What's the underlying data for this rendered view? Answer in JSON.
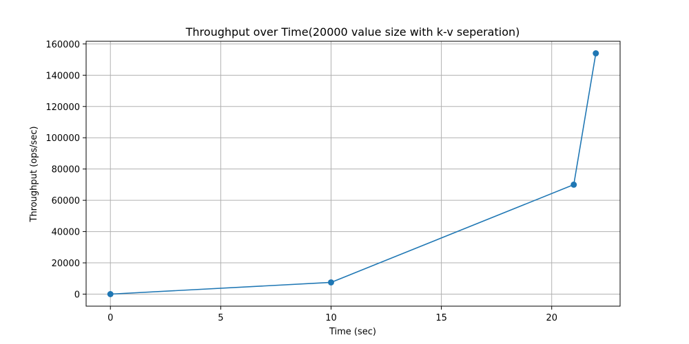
{
  "chart_data": {
    "type": "line",
    "title": "Throughput over Time(20000 value size with k-v seperation)",
    "xlabel": "Time (sec)",
    "ylabel": "Throughput (ops/sec)",
    "xlim": [
      -1.1,
      23.1
    ],
    "ylim": [
      -7700,
      161700
    ],
    "x_ticks": [
      0,
      5,
      10,
      15,
      20
    ],
    "y_ticks": [
      0,
      20000,
      40000,
      60000,
      80000,
      100000,
      120000,
      140000,
      160000
    ],
    "grid": true,
    "legend": "none",
    "series": [
      {
        "color": "#1f77b4",
        "marker": "circle",
        "points": [
          {
            "x": 0,
            "y": 0
          },
          {
            "x": 10,
            "y": 7500
          },
          {
            "x": 21,
            "y": 70000
          },
          {
            "x": 22,
            "y": 154000
          }
        ]
      }
    ]
  }
}
